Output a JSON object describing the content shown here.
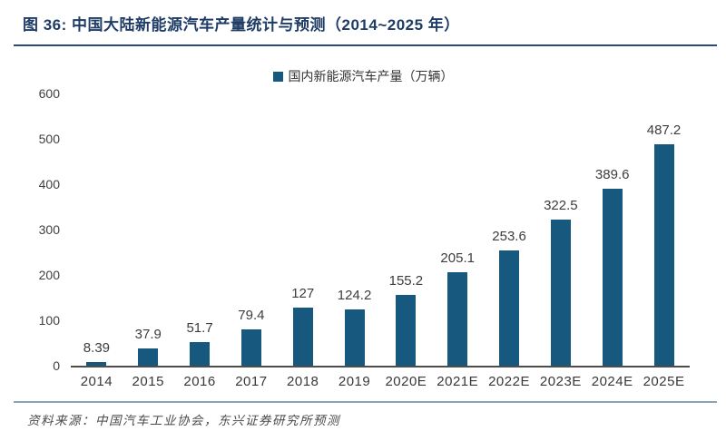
{
  "header": {
    "title": "图 36: 中国大陆新能源汽车产量统计与预测（2014~2025 年）"
  },
  "footer": {
    "source": "资料来源：中国汽车工业协会，东兴证券研究所预测"
  },
  "theme": {
    "bar_color": "#17587E",
    "title_color": "#1F3C66",
    "axis_color": "#4D4D4D",
    "top_divider_color": "#2A4A7A",
    "bottom_divider_color": "#8CA3B5"
  },
  "chart_data": {
    "type": "bar",
    "title": "图 36: 中国大陆新能源汽车产量统计与预测（2014~2025 年）",
    "legend": "国内新能源汽车产量（万辆）",
    "legend_position": "top-center",
    "categories": [
      "2014",
      "2015",
      "2016",
      "2017",
      "2018",
      "2019",
      "2020E",
      "2021E",
      "2022E",
      "2023E",
      "2024E",
      "2025E"
    ],
    "values": [
      8.39,
      37.9,
      51.7,
      79.4,
      127,
      124.2,
      155.2,
      205.1,
      253.6,
      322.5,
      389.6,
      487.2
    ],
    "value_labels": [
      "8.39",
      "37.9",
      "51.7",
      "79.4",
      "127",
      "124.2",
      "155.2",
      "205.1",
      "253.6",
      "322.5",
      "389.6",
      "487.2"
    ],
    "xlabel": "",
    "ylabel": "",
    "ylim": [
      0,
      600
    ],
    "yticks": [
      0,
      100,
      200,
      300,
      400,
      500,
      600
    ],
    "grid": false,
    "source": "资料来源：中国汽车工业协会，东兴证券研究所预测"
  }
}
